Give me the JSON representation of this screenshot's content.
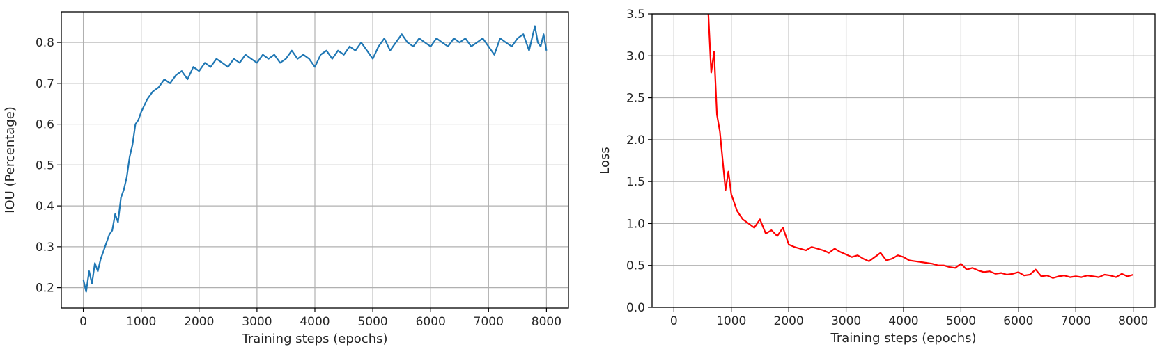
{
  "chart_data": [
    {
      "type": "line",
      "title": "",
      "xlabel": "Training steps (epochs)",
      "ylabel": "IOU (Percentage)",
      "xlim": [
        -380,
        8380
      ],
      "ylim": [
        0.15,
        0.875
      ],
      "xticks": [
        "0",
        "1000",
        "2000",
        "3000",
        "4000",
        "5000",
        "6000",
        "7000",
        "8000"
      ],
      "yticks": [
        "0.2",
        "0.3",
        "0.4",
        "0.5",
        "0.6",
        "0.7",
        "0.8"
      ],
      "grid": true,
      "legend": "none",
      "series": [
        {
          "color": "#1f77b4",
          "x": [
            0,
            50,
            100,
            150,
            200,
            250,
            300,
            350,
            400,
            450,
            500,
            550,
            600,
            650,
            700,
            750,
            800,
            850,
            900,
            950,
            1000,
            1100,
            1200,
            1300,
            1400,
            1500,
            1600,
            1700,
            1800,
            1900,
            2000,
            2100,
            2200,
            2300,
            2400,
            2500,
            2600,
            2700,
            2800,
            2900,
            3000,
            3100,
            3200,
            3300,
            3400,
            3500,
            3600,
            3700,
            3800,
            3900,
            4000,
            4100,
            4200,
            4300,
            4400,
            4500,
            4600,
            4700,
            4800,
            4900,
            5000,
            5100,
            5200,
            5300,
            5400,
            5500,
            5600,
            5700,
            5800,
            5900,
            6000,
            6100,
            6200,
            6300,
            6400,
            6500,
            6600,
            6700,
            6800,
            6900,
            7000,
            7100,
            7200,
            7300,
            7400,
            7500,
            7600,
            7700,
            7800,
            7850,
            7900,
            7950,
            8000
          ],
          "y": [
            0.22,
            0.19,
            0.24,
            0.21,
            0.26,
            0.24,
            0.27,
            0.29,
            0.31,
            0.33,
            0.34,
            0.38,
            0.36,
            0.42,
            0.44,
            0.47,
            0.52,
            0.55,
            0.6,
            0.61,
            0.63,
            0.66,
            0.68,
            0.69,
            0.71,
            0.7,
            0.72,
            0.73,
            0.71,
            0.74,
            0.73,
            0.75,
            0.74,
            0.76,
            0.75,
            0.74,
            0.76,
            0.75,
            0.77,
            0.76,
            0.75,
            0.77,
            0.76,
            0.77,
            0.75,
            0.76,
            0.78,
            0.76,
            0.77,
            0.76,
            0.74,
            0.77,
            0.78,
            0.76,
            0.78,
            0.77,
            0.79,
            0.78,
            0.8,
            0.78,
            0.76,
            0.79,
            0.81,
            0.78,
            0.8,
            0.82,
            0.8,
            0.79,
            0.81,
            0.8,
            0.79,
            0.81,
            0.8,
            0.79,
            0.81,
            0.8,
            0.81,
            0.79,
            0.8,
            0.81,
            0.79,
            0.77,
            0.81,
            0.8,
            0.79,
            0.81,
            0.82,
            0.78,
            0.84,
            0.8,
            0.79,
            0.82,
            0.78
          ]
        }
      ]
    },
    {
      "type": "line",
      "title": "",
      "xlabel": "Training steps (epochs)",
      "ylabel": "Loss",
      "xlim": [
        -380,
        8380
      ],
      "ylim": [
        0.0,
        3.5
      ],
      "xticks": [
        "0",
        "1000",
        "2000",
        "3000",
        "4000",
        "5000",
        "6000",
        "7000",
        "8000"
      ],
      "yticks": [
        "0.0",
        "0.5",
        "1.0",
        "1.5",
        "2.0",
        "2.5",
        "3.0",
        "3.5"
      ],
      "grid": true,
      "legend": "none",
      "series": [
        {
          "color": "#ff0000",
          "x": [
            600,
            650,
            700,
            750,
            800,
            850,
            900,
            950,
            1000,
            1050,
            1100,
            1150,
            1200,
            1300,
            1400,
            1500,
            1600,
            1700,
            1800,
            1900,
            2000,
            2100,
            2200,
            2300,
            2400,
            2500,
            2600,
            2700,
            2800,
            2900,
            3000,
            3100,
            3200,
            3300,
            3400,
            3500,
            3600,
            3700,
            3800,
            3900,
            4000,
            4100,
            4200,
            4300,
            4400,
            4500,
            4600,
            4700,
            4800,
            4900,
            5000,
            5100,
            5200,
            5300,
            5400,
            5500,
            5600,
            5700,
            5800,
            5900,
            6000,
            6100,
            6200,
            6300,
            6400,
            6500,
            6600,
            6700,
            6800,
            6900,
            7000,
            7100,
            7200,
            7300,
            7400,
            7500,
            7600,
            7700,
            7800,
            7900,
            8000
          ],
          "y": [
            3.5,
            2.8,
            3.05,
            2.3,
            2.1,
            1.75,
            1.4,
            1.62,
            1.35,
            1.25,
            1.15,
            1.1,
            1.05,
            1.0,
            0.95,
            1.05,
            0.88,
            0.92,
            0.85,
            0.95,
            0.75,
            0.72,
            0.7,
            0.68,
            0.72,
            0.7,
            0.68,
            0.65,
            0.7,
            0.66,
            0.63,
            0.6,
            0.62,
            0.58,
            0.55,
            0.6,
            0.65,
            0.56,
            0.58,
            0.62,
            0.6,
            0.56,
            0.55,
            0.54,
            0.53,
            0.52,
            0.5,
            0.5,
            0.48,
            0.47,
            0.52,
            0.45,
            0.47,
            0.44,
            0.42,
            0.43,
            0.4,
            0.41,
            0.39,
            0.4,
            0.42,
            0.38,
            0.39,
            0.45,
            0.37,
            0.38,
            0.35,
            0.37,
            0.38,
            0.36,
            0.37,
            0.36,
            0.38,
            0.37,
            0.36,
            0.39,
            0.38,
            0.36,
            0.4,
            0.37,
            0.39
          ]
        }
      ]
    }
  ]
}
